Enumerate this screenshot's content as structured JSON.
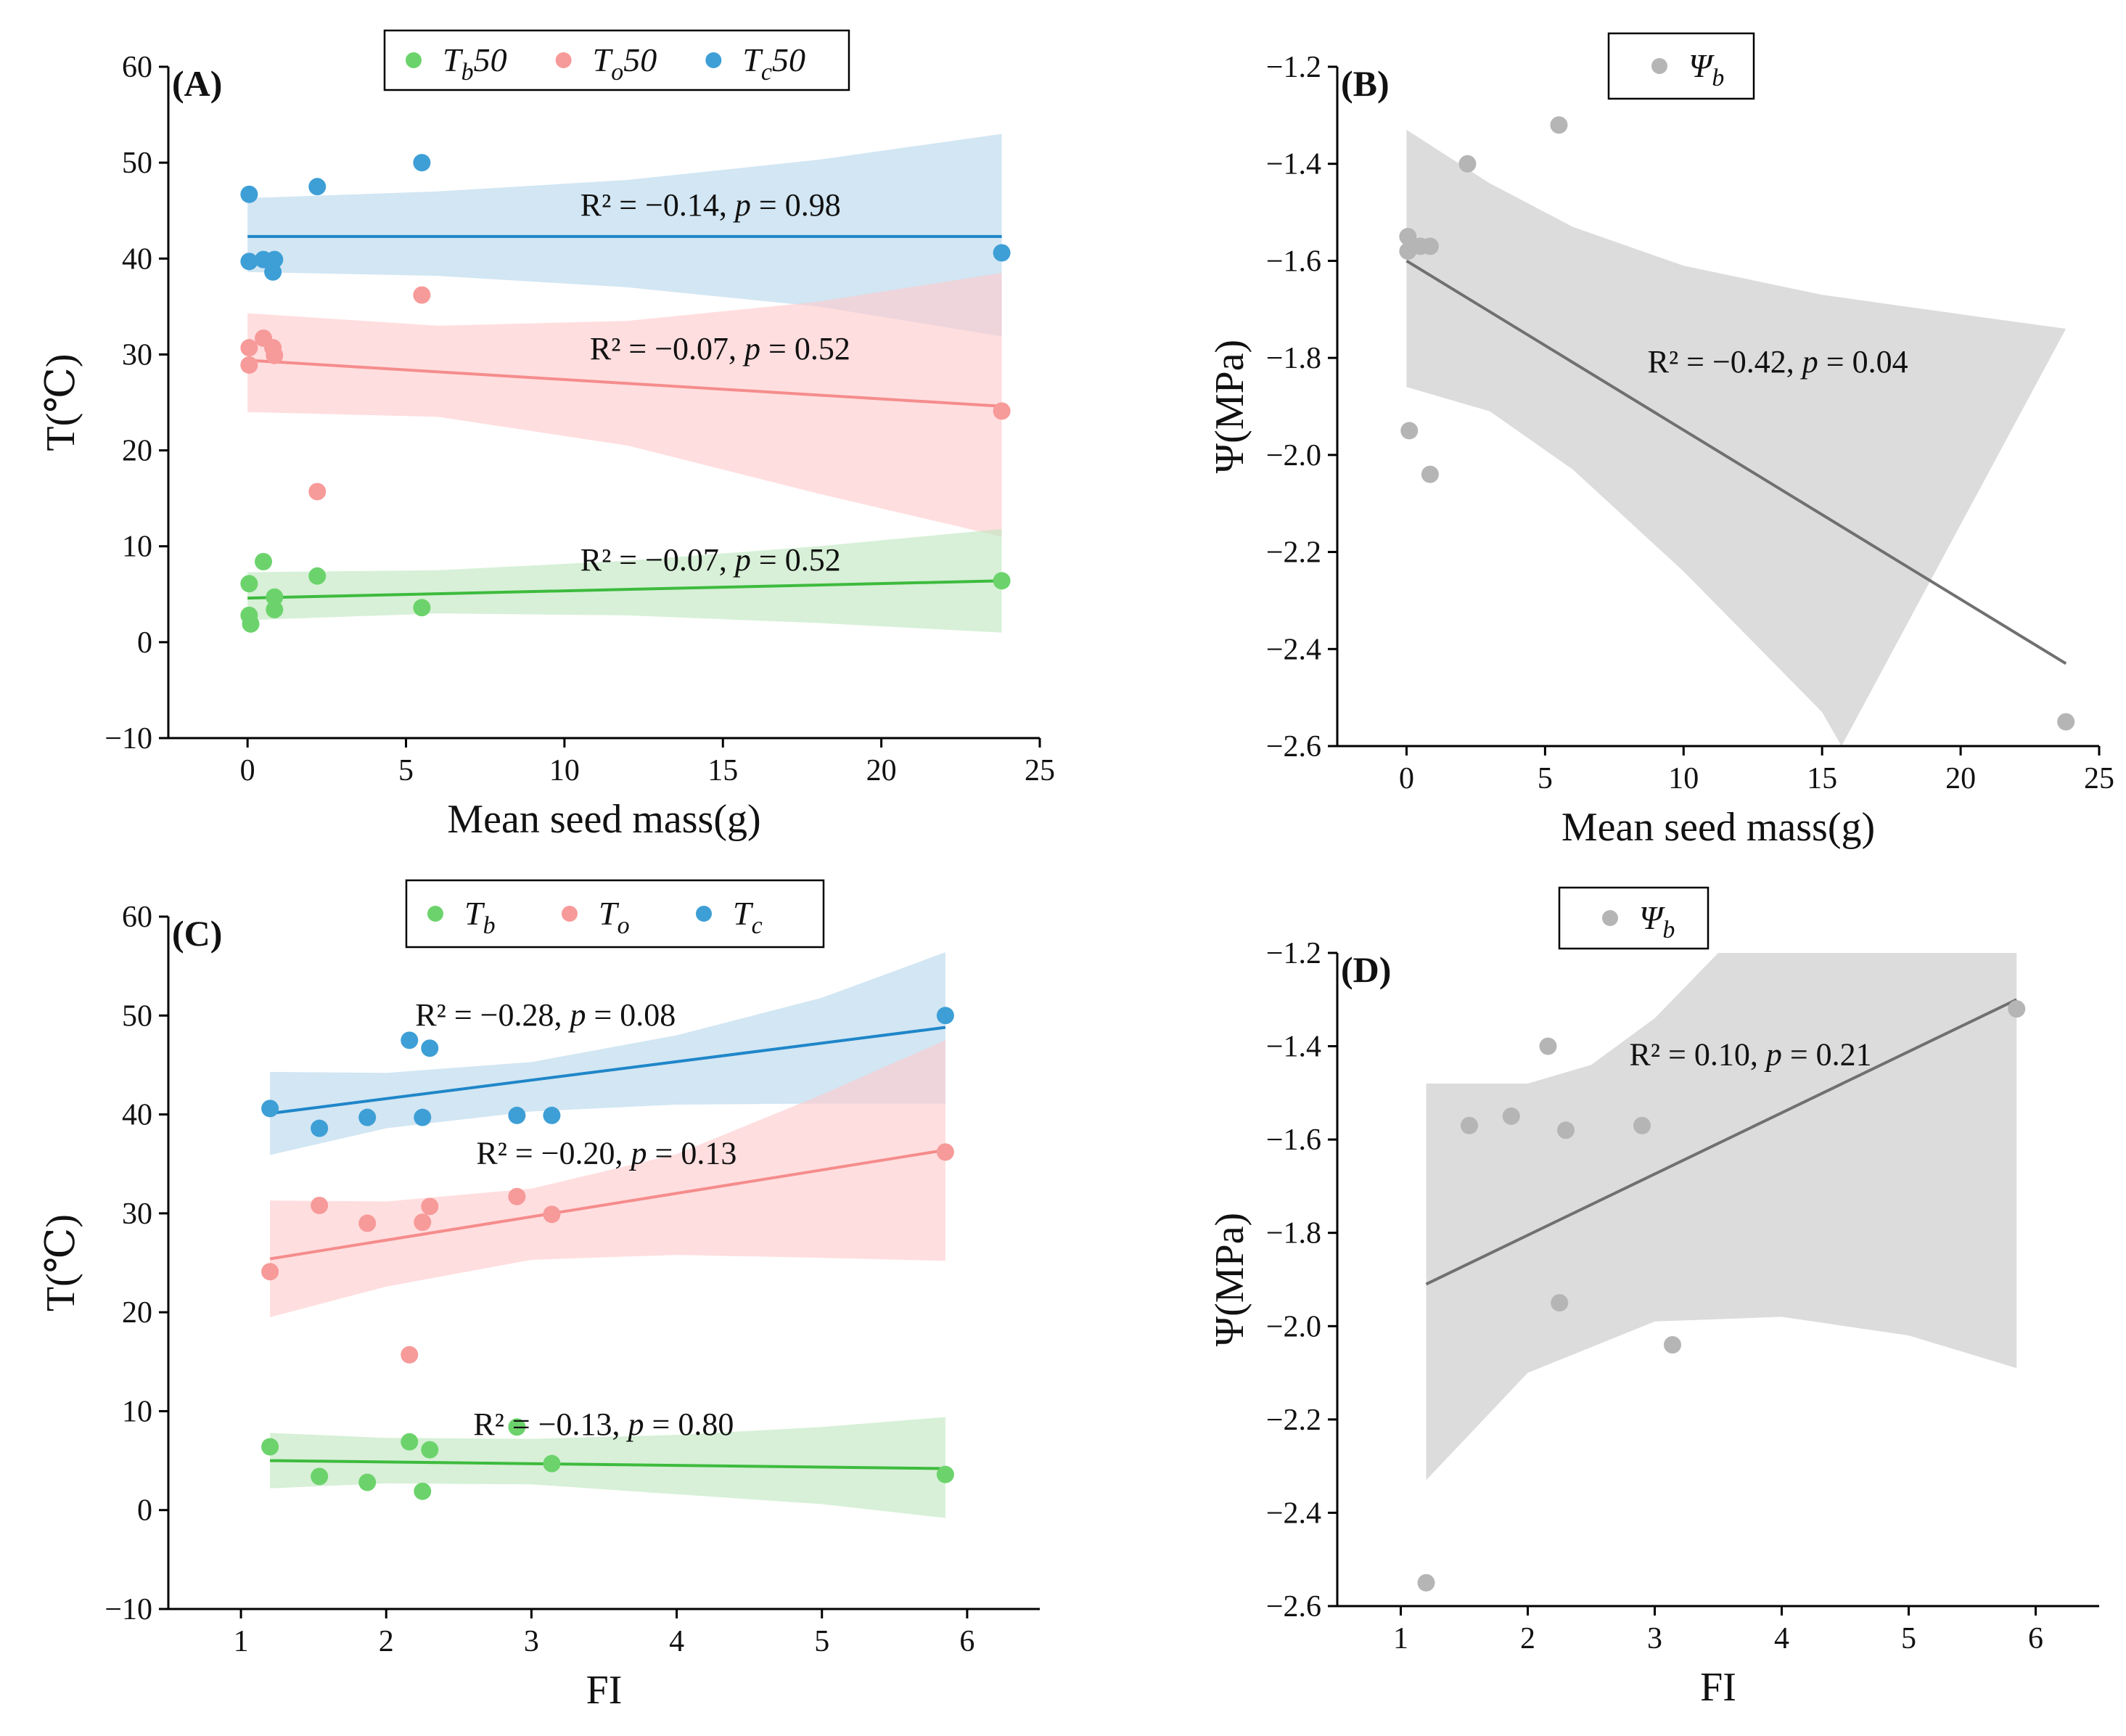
{
  "colors": {
    "green": "#6cd36c",
    "red": "#f79a9a",
    "blue": "#3e9fd6",
    "gray": "#b5b5b5",
    "green_line": "#3dbb3d",
    "red_line": "#f58c8c",
    "blue_line": "#1f86c9",
    "gray_line": "#707070",
    "green_band": "#bfe6bf",
    "red_band": "#ffc9cc",
    "blue_band": "#b6d7ec",
    "gray_band": "#dcdcdc",
    "axis": "#000000"
  },
  "chart_data": [
    {
      "id": "A",
      "panel_label": "(A)",
      "type": "scatter",
      "xlabel": "Mean seed mass(g)",
      "ylabel": "T(℃)",
      "xlim": [
        -2.5,
        25
      ],
      "ylim": [
        -10,
        60
      ],
      "xticks": [
        0,
        5,
        10,
        15,
        20,
        25
      ],
      "xtick_labels": [
        "0",
        "5",
        "10",
        "15",
        "20",
        "25"
      ],
      "yticks": [
        -10,
        0,
        10,
        20,
        30,
        40,
        50,
        60
      ],
      "ytick_labels": [
        "−10",
        "0",
        "10",
        "20",
        "30",
        "40",
        "50",
        "60"
      ],
      "legend": [
        {
          "name": "Tb50",
          "sym": "T",
          "sub": "b",
          "suffix": "50",
          "color": "green"
        },
        {
          "name": "To50",
          "sym": "T",
          "sub": "o",
          "suffix": "50",
          "color": "red"
        },
        {
          "name": "Tc50",
          "sym": "T",
          "sub": "c",
          "suffix": "50",
          "color": "blue"
        }
      ],
      "series": [
        {
          "name": "Tc50",
          "color": "blue",
          "line_color": "blue_line",
          "band_color": "blue_band",
          "points": [
            [
              0.05,
              46.7
            ],
            [
              0.05,
              39.7
            ],
            [
              0.5,
              39.9
            ],
            [
              0.85,
              39.9
            ],
            [
              0.8,
              38.6
            ],
            [
              2.2,
              47.5
            ],
            [
              5.5,
              50.0
            ],
            [
              23.8,
              40.6
            ]
          ],
          "fit": [
            [
              0,
              42.3
            ],
            [
              23.8,
              42.3
            ]
          ],
          "band_upper": [
            [
              0,
              46.3
            ],
            [
              6,
              47.0
            ],
            [
              12,
              48.2
            ],
            [
              18,
              50.3
            ],
            [
              23.8,
              53.0
            ]
          ],
          "band_lower": [
            [
              0,
              38.6
            ],
            [
              6,
              38.2
            ],
            [
              12,
              37.0
            ],
            [
              18,
              35.0
            ],
            [
              23.8,
              31.9
            ]
          ],
          "annotation": {
            "text": "R² = −0.14, p = 0.98",
            "x": 10.5,
            "y": 44.5
          }
        },
        {
          "name": "To50",
          "color": "red",
          "line_color": "red_line",
          "band_color": "red_band",
          "points": [
            [
              0.05,
              30.7
            ],
            [
              0.05,
              28.9
            ],
            [
              0.5,
              31.7
            ],
            [
              0.8,
              30.7
            ],
            [
              0.85,
              29.9
            ],
            [
              2.2,
              15.7
            ],
            [
              5.5,
              36.2
            ],
            [
              23.8,
              24.1
            ]
          ],
          "fit": [
            [
              0,
              29.4
            ],
            [
              23.8,
              24.6
            ]
          ],
          "band_upper": [
            [
              0,
              34.3
            ],
            [
              6,
              33.0
            ],
            [
              12,
              33.5
            ],
            [
              18,
              35.5
            ],
            [
              23.8,
              38.5
            ]
          ],
          "band_lower": [
            [
              0,
              24.0
            ],
            [
              6,
              23.5
            ],
            [
              12,
              20.5
            ],
            [
              18,
              15.5
            ],
            [
              23.8,
              11.0
            ]
          ],
          "annotation": {
            "text": "R² = −0.07, p = 0.52",
            "x": 10.8,
            "y": 29.5
          }
        },
        {
          "name": "Tb50",
          "color": "green",
          "line_color": "green_line",
          "band_color": "green_band",
          "points": [
            [
              0.05,
              6.1
            ],
            [
              0.05,
              2.8
            ],
            [
              0.1,
              1.9
            ],
            [
              0.5,
              8.4
            ],
            [
              0.85,
              4.7
            ],
            [
              0.85,
              3.4
            ],
            [
              2.2,
              6.9
            ],
            [
              5.5,
              3.6
            ],
            [
              23.8,
              6.4
            ]
          ],
          "fit": [
            [
              0,
              4.6
            ],
            [
              23.8,
              6.4
            ]
          ],
          "band_upper": [
            [
              0,
              7.3
            ],
            [
              6,
              7.5
            ],
            [
              12,
              8.5
            ],
            [
              18,
              10.0
            ],
            [
              23.8,
              11.8
            ]
          ],
          "band_lower": [
            [
              0,
              2.3
            ],
            [
              6,
              3.0
            ],
            [
              12,
              2.8
            ],
            [
              18,
              2.0
            ],
            [
              23.8,
              1.0
            ]
          ],
          "annotation": {
            "text": "R² = −0.07, p = 0.52",
            "x": 10.5,
            "y": 7.5
          }
        }
      ]
    },
    {
      "id": "B",
      "panel_label": "(B)",
      "type": "scatter",
      "xlabel": "Mean seed mass(g)",
      "ylabel": "Ψ(MPa)",
      "xlim": [
        -2.5,
        25
      ],
      "ylim": [
        -2.6,
        -1.2
      ],
      "xticks": [
        0,
        5,
        10,
        15,
        20,
        25
      ],
      "xtick_labels": [
        "0",
        "5",
        "10",
        "15",
        "20",
        "25"
      ],
      "yticks": [
        -2.6,
        -2.4,
        -2.2,
        -2.0,
        -1.8,
        -1.6,
        -1.4,
        -1.2
      ],
      "ytick_labels": [
        "−2.6",
        "−2.4",
        "−2.2",
        "−2.0",
        "−1.8",
        "−1.6",
        "−1.4",
        "−1.2"
      ],
      "legend": [
        {
          "name": "Ψb",
          "sym": "Ψ",
          "sub": "b",
          "suffix": "",
          "color": "gray"
        }
      ],
      "series": [
        {
          "name": "Ψb",
          "color": "gray",
          "line_color": "gray_line",
          "band_color": "gray_band",
          "points": [
            [
              0.05,
              -1.55
            ],
            [
              0.05,
              -1.58
            ],
            [
              0.1,
              -1.95
            ],
            [
              0.5,
              -1.57
            ],
            [
              0.85,
              -1.57
            ],
            [
              0.85,
              -2.04
            ],
            [
              2.2,
              -1.4
            ],
            [
              5.5,
              -1.32
            ],
            [
              23.8,
              -2.55
            ]
          ],
          "fit": [
            [
              0,
              -1.6
            ],
            [
              23.8,
              -2.43
            ]
          ],
          "band_upper": [
            [
              0,
              -1.33
            ],
            [
              3,
              -1.44
            ],
            [
              6,
              -1.53
            ],
            [
              10,
              -1.61
            ],
            [
              15,
              -1.67
            ],
            [
              20,
              -1.71
            ],
            [
              23.8,
              -1.74
            ]
          ],
          "band_lower": [
            [
              0,
              -1.86
            ],
            [
              3,
              -1.91
            ],
            [
              6,
              -2.03
            ],
            [
              10,
              -2.24
            ],
            [
              15,
              -2.53
            ],
            [
              15.7,
              -2.6
            ]
          ],
          "annotation": {
            "text": "R² = −0.42, p = 0.04",
            "x": 8.7,
            "y": -1.83
          }
        }
      ]
    },
    {
      "id": "C",
      "panel_label": "(C)",
      "type": "scatter",
      "xlabel": "FI",
      "ylabel": "T(℃)",
      "xlim": [
        0.5,
        6.5
      ],
      "ylim": [
        -10,
        60
      ],
      "xticks": [
        1,
        2,
        3,
        4,
        5,
        6
      ],
      "xtick_labels": [
        "1",
        "2",
        "3",
        "4",
        "5",
        "6"
      ],
      "yticks": [
        -10,
        0,
        10,
        20,
        30,
        40,
        50,
        60
      ],
      "ytick_labels": [
        "−10",
        "0",
        "10",
        "20",
        "30",
        "40",
        "50",
        "60"
      ],
      "legend": [
        {
          "name": "Tb",
          "sym": "T",
          "sub": "b",
          "suffix": "",
          "color": "green"
        },
        {
          "name": "To",
          "sym": "T",
          "sub": "o",
          "suffix": "",
          "color": "red"
        },
        {
          "name": "Tc",
          "sym": "T",
          "sub": "c",
          "suffix": "",
          "color": "blue"
        }
      ],
      "series": [
        {
          "name": "Tc",
          "color": "blue",
          "line_color": "blue_line",
          "band_color": "blue_band",
          "points": [
            [
              1.2,
              40.6
            ],
            [
              1.54,
              38.6
            ],
            [
              1.87,
              39.7
            ],
            [
              2.16,
              47.5
            ],
            [
              2.25,
              39.7
            ],
            [
              2.3,
              46.7
            ],
            [
              2.9,
              39.9
            ],
            [
              3.14,
              39.9
            ],
            [
              5.85,
              50.0
            ]
          ],
          "fit": [
            [
              1.2,
              40.1
            ],
            [
              5.85,
              48.8
            ]
          ],
          "band_upper": [
            [
              1.2,
              44.3
            ],
            [
              2.0,
              44.2
            ],
            [
              3.0,
              45.3
            ],
            [
              4.0,
              48.0
            ],
            [
              5.0,
              51.8
            ],
            [
              5.85,
              56.4
            ]
          ],
          "band_lower": [
            [
              1.2,
              35.9
            ],
            [
              2.0,
              38.6
            ],
            [
              3.0,
              40.3
            ],
            [
              4.0,
              41.0
            ],
            [
              5.0,
              41.1
            ],
            [
              5.85,
              41.1
            ]
          ],
          "annotation": {
            "text": "R² = −0.28, p = 0.08",
            "x": 2.2,
            "y": 49
          }
        },
        {
          "name": "To",
          "color": "red",
          "line_color": "red_line",
          "band_color": "red_band",
          "points": [
            [
              1.2,
              24.1
            ],
            [
              1.54,
              30.8
            ],
            [
              1.87,
              29.0
            ],
            [
              2.16,
              15.7
            ],
            [
              2.25,
              29.1
            ],
            [
              2.3,
              30.7
            ],
            [
              2.9,
              31.7
            ],
            [
              3.14,
              29.9
            ],
            [
              5.85,
              36.2
            ]
          ],
          "fit": [
            [
              1.2,
              25.4
            ],
            [
              5.85,
              36.4
            ]
          ],
          "band_upper": [
            [
              1.2,
              31.3
            ],
            [
              2.0,
              31.2
            ],
            [
              3.0,
              32.5
            ],
            [
              4.0,
              36.0
            ],
            [
              5.0,
              42.0
            ],
            [
              5.85,
              47.5
            ]
          ],
          "band_lower": [
            [
              1.2,
              19.5
            ],
            [
              2.0,
              22.6
            ],
            [
              3.0,
              25.3
            ],
            [
              4.0,
              25.8
            ],
            [
              5.0,
              25.5
            ],
            [
              5.85,
              25.2
            ]
          ],
          "annotation": {
            "text": "R² = −0.20, p = 0.13",
            "x": 2.62,
            "y": 35
          }
        },
        {
          "name": "Tb",
          "color": "green",
          "line_color": "green_line",
          "band_color": "green_band",
          "points": [
            [
              1.2,
              6.4
            ],
            [
              1.54,
              3.4
            ],
            [
              1.87,
              2.8
            ],
            [
              2.16,
              6.9
            ],
            [
              2.25,
              1.9
            ],
            [
              2.3,
              6.1
            ],
            [
              2.9,
              8.4
            ],
            [
              3.14,
              4.7
            ],
            [
              5.85,
              3.6
            ]
          ],
          "fit": [
            [
              1.2,
              5.0
            ],
            [
              5.85,
              4.2
            ]
          ],
          "band_upper": [
            [
              1.2,
              7.8
            ],
            [
              2.0,
              7.3
            ],
            [
              3.0,
              7.2
            ],
            [
              4.0,
              7.6
            ],
            [
              5.0,
              8.4
            ],
            [
              5.85,
              9.4
            ]
          ],
          "band_lower": [
            [
              1.2,
              2.2
            ],
            [
              2.0,
              2.7
            ],
            [
              3.0,
              2.6
            ],
            [
              4.0,
              1.6
            ],
            [
              5.0,
              0.6
            ],
            [
              5.85,
              -0.8
            ]
          ],
          "annotation": {
            "text": "R² = −0.13, p = 0.80",
            "x": 2.6,
            "y": 7.6
          }
        }
      ]
    },
    {
      "id": "D",
      "panel_label": "(D)",
      "type": "scatter",
      "xlabel": "FI",
      "ylabel": "Ψ(MPa)",
      "xlim": [
        0.5,
        6.5
      ],
      "ylim": [
        -2.6,
        -1.2
      ],
      "xticks": [
        1,
        2,
        3,
        4,
        5,
        6
      ],
      "xtick_labels": [
        "1",
        "2",
        "3",
        "4",
        "5",
        "6"
      ],
      "yticks": [
        -2.6,
        -2.4,
        -2.2,
        -2.0,
        -1.8,
        -1.6,
        -1.4,
        -1.2
      ],
      "ytick_labels": [
        "−2.6",
        "−2.4",
        "−2.2",
        "−2.0",
        "−1.8",
        "−1.6",
        "−1.4",
        "−1.2"
      ],
      "legend": [
        {
          "name": "Ψb",
          "sym": "Ψ",
          "sub": "b",
          "suffix": "",
          "color": "gray"
        }
      ],
      "series": [
        {
          "name": "Ψb",
          "color": "gray",
          "line_color": "gray_line",
          "band_color": "gray_band",
          "points": [
            [
              1.2,
              -2.55
            ],
            [
              1.54,
              -1.57
            ],
            [
              1.87,
              -1.55
            ],
            [
              2.16,
              -1.4
            ],
            [
              2.25,
              -1.95
            ],
            [
              2.3,
              -1.58
            ],
            [
              2.9,
              -1.57
            ],
            [
              3.14,
              -2.04
            ],
            [
              5.85,
              -1.32
            ]
          ],
          "fit": [
            [
              1.2,
              -1.91
            ],
            [
              5.85,
              -1.3
            ]
          ],
          "band_upper": [
            [
              1.2,
              -1.48
            ],
            [
              2.0,
              -1.48
            ],
            [
              2.5,
              -1.44
            ],
            [
              3.0,
              -1.34
            ],
            [
              3.5,
              -1.2
            ],
            [
              5.85,
              -1.2
            ]
          ],
          "band_lower": [
            [
              1.2,
              -2.33
            ],
            [
              2.0,
              -2.1
            ],
            [
              3.0,
              -1.99
            ],
            [
              4.0,
              -1.98
            ],
            [
              5.0,
              -2.02
            ],
            [
              5.85,
              -2.09
            ]
          ],
          "annotation": {
            "text": "R² = 0.10, p = 0.21",
            "x": 2.8,
            "y": -1.44
          }
        }
      ]
    }
  ]
}
